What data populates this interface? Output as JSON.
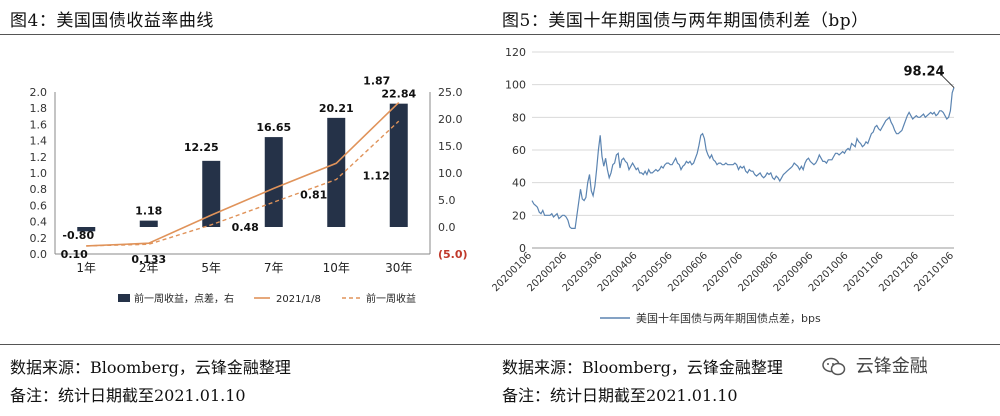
{
  "left": {
    "title": "图4：美国国债收益率曲线",
    "source": "数据来源：Bloomberg，云锋金融整理",
    "note": "备注：统计日期截至2021.01.10"
  },
  "right": {
    "title": "图5：美国十年期国债与两年期国债利差（bp）",
    "source": "数据来源：Bloomberg，云锋金融整理",
    "note": "备注：统计日期截至2021.01.10",
    "watermark": "云锋金融"
  },
  "chart_data": [
    {
      "type": "bar",
      "categories": [
        "1年",
        "2年",
        "5年",
        "7年",
        "10年",
        "30年"
      ],
      "series": [
        {
          "name": "前一周收益，点差，右",
          "axis": "right",
          "values": [
            -0.8,
            1.18,
            12.25,
            16.65,
            20.21,
            22.84
          ],
          "labels": [
            "-0.80",
            "1.18",
            "12.25",
            "16.65",
            "20.21",
            "22.84"
          ],
          "color": "#253248"
        },
        {
          "name": "2021/1/8",
          "axis": "left",
          "type": "line",
          "values": [
            0.1,
            0.133,
            0.48,
            0.81,
            1.12,
            1.87
          ],
          "labels": [
            "0.10",
            "0.133",
            "0.48",
            "0.81",
            "1.12",
            "1.87"
          ],
          "color": "#e0935a"
        },
        {
          "name": "前一周收益",
          "axis": "left",
          "type": "line",
          "dashed": true,
          "values": [
            0.1,
            0.12,
            0.36,
            0.64,
            0.92,
            1.64
          ],
          "color": "#e0935a"
        }
      ],
      "ylim_left": [
        0,
        2.0
      ],
      "yticks_left": [
        "0.0",
        "0.2",
        "0.4",
        "0.6",
        "0.8",
        "1.0",
        "1.2",
        "1.4",
        "1.6",
        "1.8",
        "2.0"
      ],
      "ylim_right": [
        -5,
        25
      ],
      "yticks_right": [
        "(5.0)",
        "0.0",
        "5.0",
        "10.0",
        "15.0",
        "20.0",
        "25.0"
      ],
      "legend": "bottom"
    },
    {
      "type": "line",
      "x_ticks": [
        "20200106",
        "20200206",
        "20200306",
        "20200406",
        "20200506",
        "20200606",
        "20200706",
        "20200806",
        "20200906",
        "20201006",
        "20201106",
        "20201206",
        "20210106"
      ],
      "ylim": [
        0,
        120
      ],
      "yticks": [
        "0",
        "20",
        "40",
        "60",
        "80",
        "100",
        "120"
      ],
      "series": [
        {
          "name": "美国十年国债与两年期国债点差，bps",
          "values": [
            29,
            27,
            26,
            25,
            22,
            21,
            23,
            20,
            20,
            20,
            20,
            21,
            19,
            20,
            21,
            18,
            19,
            20,
            20,
            19,
            17,
            13,
            12,
            12,
            12,
            20,
            28,
            36,
            30,
            29,
            31,
            40,
            45,
            35,
            32,
            38,
            48,
            60,
            69,
            56,
            50,
            55,
            48,
            43,
            46,
            51,
            52,
            57,
            58,
            49,
            54,
            55,
            53,
            52,
            48,
            50,
            52,
            50,
            48,
            49,
            46,
            46,
            45,
            47,
            45,
            48,
            46,
            46,
            47,
            48,
            47,
            48,
            50,
            49,
            51,
            52,
            52,
            51,
            51,
            53,
            55,
            52,
            51,
            48,
            50,
            51,
            53,
            52,
            53,
            51,
            52,
            55,
            58,
            63,
            69,
            70,
            67,
            60,
            57,
            55,
            57,
            54,
            53,
            51,
            52,
            52,
            51,
            51,
            52,
            51,
            51,
            51,
            51,
            52,
            51,
            48,
            50,
            49,
            50,
            47,
            46,
            48,
            47,
            47,
            45,
            44,
            45,
            46,
            44,
            43,
            44,
            46,
            45,
            46,
            43,
            42,
            44,
            43,
            41,
            43,
            45,
            46,
            47,
            48,
            49,
            50,
            52,
            51,
            50,
            48,
            50,
            48,
            52,
            54,
            55,
            53,
            52,
            51,
            52,
            54,
            57,
            55,
            53,
            53,
            52,
            54,
            54,
            54,
            56,
            58,
            58,
            57,
            58,
            59,
            58,
            60,
            61,
            60,
            64,
            63,
            62,
            67,
            65,
            64,
            62,
            63,
            65,
            64,
            67,
            70,
            71,
            74,
            75,
            73,
            72,
            74,
            76,
            78,
            79,
            80,
            77,
            75,
            72,
            70,
            70,
            71,
            72,
            75,
            78,
            81,
            83,
            81,
            79,
            80,
            81,
            80,
            80,
            81,
            82,
            80,
            81,
            82,
            83,
            82,
            83,
            81,
            82,
            84,
            84,
            83,
            81,
            79,
            80,
            84,
            95,
            98.24
          ]
        }
      ],
      "annotation": "98.24",
      "legend": "bottom"
    }
  ]
}
